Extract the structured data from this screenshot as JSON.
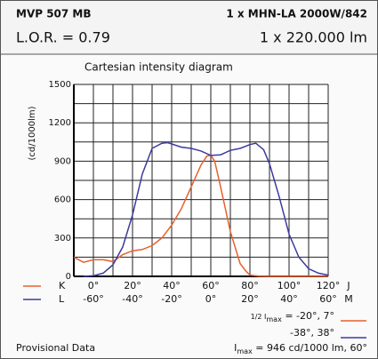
{
  "header": {
    "name": "MVP 507 MB",
    "lamp": "1 x MHN-LA 2000W/842",
    "lor": "L.O.R. = 0.79",
    "flux": "1 x 220.000 lm"
  },
  "chart_data": {
    "type": "line",
    "title": "Cartesian intensity diagram",
    "ylabel": "(cd/1000lm)",
    "xlim": [
      -70,
      60
    ],
    "x2lim": [
      -10,
      120
    ],
    "ylim": [
      0,
      1500
    ],
    "yticks": [
      0,
      300,
      600,
      900,
      1200,
      1500
    ],
    "yminorticks": [
      150,
      450,
      750,
      1050,
      1350
    ],
    "xticks": [
      {
        "value": -60,
        "label": "-60°"
      },
      {
        "value": -40,
        "label": "-40°"
      },
      {
        "value": -20,
        "label": "-20°"
      },
      {
        "value": 0,
        "label": "0°"
      },
      {
        "value": 20,
        "label": "20°"
      },
      {
        "value": 40,
        "label": "40°"
      },
      {
        "value": 60,
        "label": "60°"
      }
    ],
    "xminorticks": [
      -70,
      -50,
      -30,
      -10,
      10,
      30,
      50
    ],
    "x2ticks": [
      {
        "value": 0,
        "label": "0°"
      },
      {
        "value": 20,
        "label": "20°"
      },
      {
        "value": 40,
        "label": "40°"
      },
      {
        "value": 60,
        "label": "60°"
      },
      {
        "value": 80,
        "label": "80°"
      },
      {
        "value": 100,
        "label": "100°"
      },
      {
        "value": 120,
        "label": "120°"
      }
    ],
    "x2_end_label": "J",
    "x_end_label": "M",
    "grid": true,
    "series": [
      {
        "name": "K",
        "color": "#e8602c",
        "axis": "x2",
        "x": [
          -10,
          -5,
          0,
          5,
          10,
          15,
          20,
          25,
          30,
          35,
          40,
          45,
          50,
          55,
          58,
          60,
          62,
          65,
          70,
          75,
          78,
          80,
          85,
          90,
          100,
          110,
          120
        ],
        "values": [
          150,
          110,
          130,
          130,
          115,
          170,
          200,
          210,
          240,
          300,
          400,
          530,
          700,
          870,
          940,
          946,
          900,
          700,
          350,
          100,
          40,
          10,
          2,
          0,
          0,
          0,
          0
        ]
      },
      {
        "name": "L",
        "color": "#3b3ba0",
        "x": [
          -65,
          -60,
          -55,
          -50,
          -45,
          -40,
          -35,
          -30,
          -25,
          -22,
          -15,
          -10,
          -5,
          0,
          5,
          10,
          15,
          20,
          23,
          27,
          30,
          35,
          40,
          45,
          50,
          55,
          60
        ],
        "values": [
          0,
          5,
          25,
          90,
          230,
          480,
          800,
          1000,
          1040,
          1045,
          1010,
          1000,
          980,
          945,
          950,
          985,
          1000,
          1030,
          1040,
          990,
          880,
          620,
          330,
          150,
          60,
          25,
          10
        ]
      }
    ],
    "annotations": {
      "half_k": {
        "pre": "1/2 I",
        "sub": "max",
        "post": " = -20°,  7°"
      },
      "half_l": "-38°, 38°",
      "imax": {
        "pre": "I",
        "sub": "max",
        "post": " = 946 cd/1000 lm, 60°"
      },
      "note": "Provisional Data"
    }
  }
}
